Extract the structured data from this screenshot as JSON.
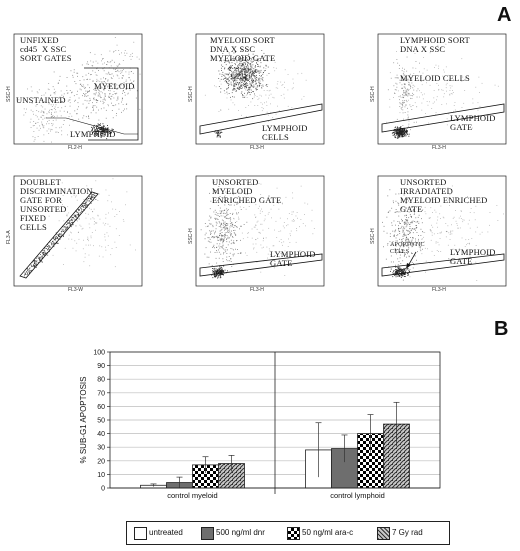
{
  "panel_a": {
    "letter": "A",
    "plots": [
      {
        "id": "p1",
        "text": "UNFIXED\ncd45  X SSC\nSORT GATES",
        "extra": [
          {
            "text": "MYELOID"
          },
          {
            "text": "UNSTAINED"
          },
          {
            "text": "LYMPHOID"
          }
        ],
        "xlabel": "FL2-H",
        "ylabel": "SSC-H"
      },
      {
        "id": "p2",
        "text": "MYELOID SORT\nDNA X SSC\nMYELOID GATE",
        "extra": [
          {
            "text": "LYMPHOID\nCELLS"
          }
        ],
        "xlabel": "FL3-H",
        "ylabel": "SSC-H"
      },
      {
        "id": "p3",
        "text": "LYMPHOID SORT\nDNA X SSC",
        "extra": [
          {
            "text": "MYELOID CELLS"
          },
          {
            "text": "LYMPHOID\nGATE"
          }
        ],
        "xlabel": "FL3-H",
        "ylabel": "SSC-H"
      },
      {
        "id": "p4",
        "text": "DOUBLET\nDISCRIMINATION\nGATE FOR\nUNSORTED\nFIXED\nCELLS",
        "extra": [],
        "xlabel": "FL3-W",
        "ylabel": "FL3-A"
      },
      {
        "id": "p5",
        "text": "UNSORTED\nMYELOID\nENRICHED GATE",
        "extra": [
          {
            "text": "LYMPHOID\nGATE"
          }
        ],
        "xlabel": "FL3-H",
        "ylabel": "SSC-H"
      },
      {
        "id": "p6",
        "text": "UNSORTED\nIRRADIATED\nMYELOID ENRICHED\nGATE",
        "extra": [
          {
            "text": "APOPTOTIC\nCELLS"
          },
          {
            "text": "LYMPHOID\nGATE"
          }
        ],
        "xlabel": "FL3-H",
        "ylabel": "SSC-H"
      }
    ]
  },
  "panel_b": {
    "letter": "B"
  },
  "chart_data": {
    "type": "bar",
    "title": "",
    "ylabel": "% SUB-G1 APOPTOSIS",
    "xlabel": "",
    "ylim": [
      0,
      100
    ],
    "yticks": [
      "0",
      "10",
      "20",
      "30",
      "40",
      "50",
      "60",
      "70",
      "80",
      "90",
      "100"
    ],
    "grid": true,
    "groups": [
      "control  myeloid",
      "control  lymphoid"
    ],
    "series": [
      {
        "name": "untreated",
        "color": "#ffffff",
        "pattern": "none",
        "values": [
          2,
          28
        ],
        "errors": [
          1,
          20
        ]
      },
      {
        "name": "500 ng/ml dnr",
        "color": "#6e6e6e",
        "pattern": "solid",
        "values": [
          4,
          29
        ],
        "errors": [
          4,
          10
        ]
      },
      {
        "name": "50 ng/ml ara-c",
        "color": "#000000",
        "pattern": "checker",
        "values": [
          17,
          40
        ],
        "errors": [
          6,
          14
        ]
      },
      {
        "name": "7 Gy rad",
        "color": "#9a9a9a",
        "pattern": "hatch",
        "values": [
          18,
          47
        ],
        "errors": [
          6,
          16
        ]
      }
    ],
    "legend_position": "bottom"
  }
}
